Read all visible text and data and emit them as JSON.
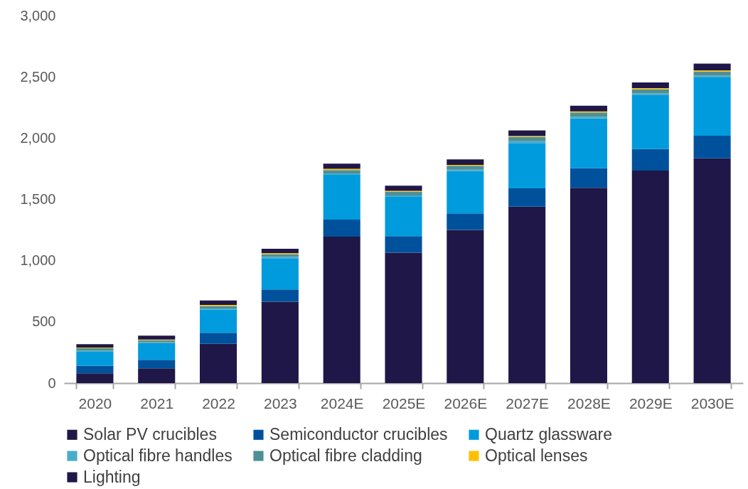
{
  "chart_data": {
    "type": "bar",
    "stacked": true,
    "categories": [
      "2020",
      "2021",
      "2022",
      "2023",
      "2024E",
      "2025E",
      "2026E",
      "2027E",
      "2028E",
      "2029E",
      "2030E"
    ],
    "series": [
      {
        "name": "Solar PV crucibles",
        "color": "#1f1747",
        "values": [
          80,
          120,
          320,
          665,
          1195,
          1065,
          1250,
          1440,
          1595,
          1735,
          1835
        ]
      },
      {
        "name": "Semiconductor crucibles",
        "color": "#00519b",
        "values": [
          60,
          70,
          90,
          100,
          140,
          135,
          135,
          150,
          160,
          175,
          185
        ]
      },
      {
        "name": "Quartz glassware",
        "color": "#009bdc",
        "values": [
          115,
          135,
          190,
          255,
          365,
          320,
          345,
          370,
          405,
          440,
          475
        ]
      },
      {
        "name": "Optical fibre handles",
        "color": "#4aaccc",
        "values": [
          10,
          8,
          10,
          12,
          12,
          12,
          12,
          15,
          15,
          15,
          15
        ]
      },
      {
        "name": "Optical fibre cladding",
        "color": "#4f8f96",
        "values": [
          20,
          17,
          20,
          20,
          28,
          30,
          32,
          35,
          35,
          35,
          35
        ]
      },
      {
        "name": "Optical lenses",
        "color": "#ffc000",
        "values": [
          5,
          6,
          8,
          8,
          10,
          8,
          8,
          8,
          8,
          8,
          8
        ]
      },
      {
        "name": "Lighting",
        "color": "#1f1748",
        "values": [
          28,
          32,
          37,
          37,
          42,
          42,
          45,
          45,
          47,
          47,
          55
        ]
      }
    ],
    "ylim": [
      0,
      3000
    ],
    "yticks": [
      0,
      {
        "value": 500,
        "label": "500"
      },
      {
        "value": 1000,
        "label": "1,000"
      },
      {
        "value": 1500,
        "label": "1,500"
      },
      {
        "value": 2000,
        "label": "2,000"
      },
      {
        "value": 2500,
        "label": "2,500"
      },
      {
        "value": 3000,
        "label": "3,000"
      }
    ],
    "grid": false,
    "legend": "bottom"
  }
}
